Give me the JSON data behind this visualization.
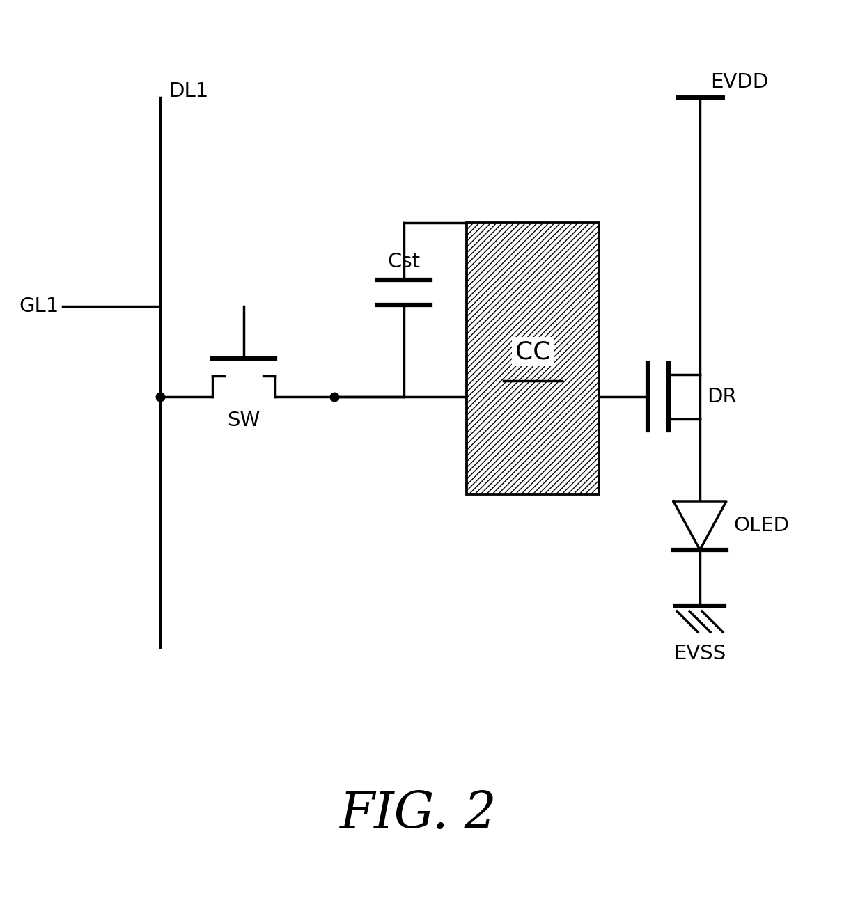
{
  "bg_color": "#ffffff",
  "line_color": "#000000",
  "fig_title": "FIG. 2",
  "title_fontsize": 52,
  "label_fontsize": 21,
  "lw": 2.5,
  "dl1_label": "DL1",
  "gl1_label": "GL1",
  "sw_label": "SW",
  "cst_label": "Cst",
  "cc_label": "CC",
  "dr_label": "DR",
  "evdd_label": "EVDD",
  "oled_label": "OLED",
  "evss_label": "EVSS"
}
